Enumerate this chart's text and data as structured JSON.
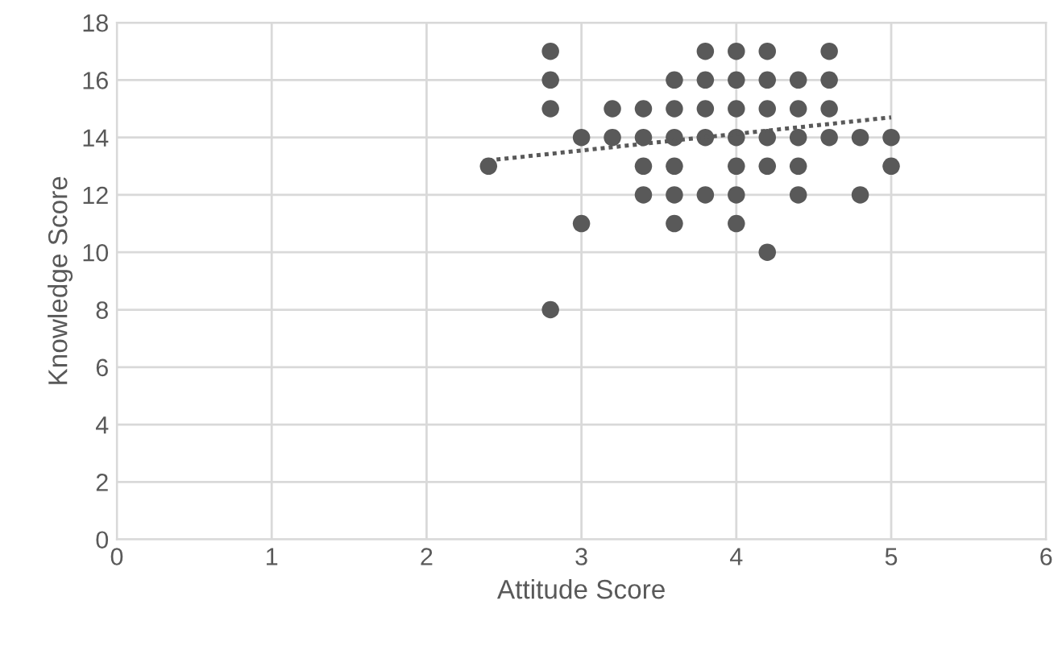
{
  "chart_data": {
    "type": "scatter",
    "xlabel": "Attitude Score",
    "ylabel": "Knowledge Score",
    "xlim": [
      0,
      6
    ],
    "ylim": [
      0,
      18
    ],
    "xticks": [
      0,
      1,
      2,
      3,
      4,
      5,
      6
    ],
    "yticks": [
      0,
      2,
      4,
      6,
      8,
      10,
      12,
      14,
      16,
      18
    ],
    "grid": true,
    "legend": false,
    "marker": "circle",
    "series": [
      {
        "color": "#595959",
        "x": [
          2.4,
          2.8,
          2.8,
          2.8,
          2.8,
          3.0,
          3.0,
          3.2,
          3.2,
          3.4,
          3.4,
          3.4,
          3.4,
          3.6,
          3.6,
          3.6,
          3.6,
          3.6,
          3.6,
          3.8,
          3.8,
          3.8,
          3.8,
          3.8,
          4.0,
          4.0,
          4.0,
          4.0,
          4.0,
          4.0,
          4.0,
          4.2,
          4.2,
          4.2,
          4.2,
          4.2,
          4.2,
          4.4,
          4.4,
          4.4,
          4.4,
          4.4,
          4.6,
          4.6,
          4.6,
          4.6,
          4.8,
          4.8,
          5.0,
          5.0
        ],
        "values": [
          13,
          17,
          16,
          15,
          8,
          14,
          11,
          15,
          14,
          15,
          14,
          13,
          12,
          16,
          15,
          14,
          13,
          12,
          11,
          17,
          16,
          15,
          14,
          12,
          17,
          16,
          15,
          14,
          13,
          12,
          11,
          17,
          16,
          15,
          14,
          13,
          10,
          16,
          15,
          14,
          13,
          12,
          17,
          16,
          15,
          14,
          14,
          12,
          14,
          13
        ]
      },
      {
        "type": "line",
        "color": "#595959",
        "line_style": "dotted",
        "marker": "none",
        "x": [
          2.4,
          5.0
        ],
        "values": [
          13.2,
          14.7
        ]
      }
    ]
  }
}
